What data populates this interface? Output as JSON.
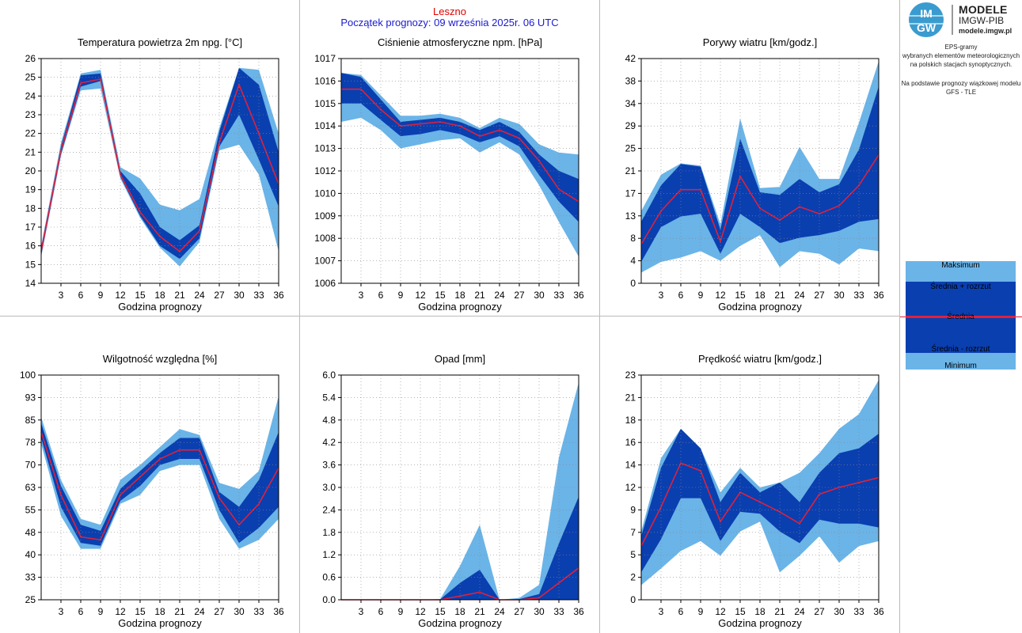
{
  "header": {
    "location": "Leszno",
    "forecast_start": "Początek prognozy: 09 września 2025r. 06 UTC"
  },
  "sidebar": {
    "logo_mark": "IM GW",
    "logo_name": "MODELE",
    "logo_sub": "IMGW-PIB",
    "logo_url": "modele.imgw.pl",
    "desc_lines": [
      "EPS-gramy",
      "wybranych elementów meteorologicznych",
      "na polskich stacjach  synoptycznych."
    ],
    "model_lines": [
      "Na podstawie prognozy wiązkowej modelu",
      "GFS - TLE"
    ],
    "legend": {
      "max": "Maksimum",
      "mean_plus": "Średnia + rozrzut",
      "mean": "Średnia",
      "mean_minus": "Średnia - rozrzut",
      "min": "Minimum"
    }
  },
  "colors": {
    "outer_band": "#6ab4e8",
    "inner_band": "#0a3fb0",
    "mean_line": "#e0203a",
    "grid": "#888888"
  },
  "chart_data": [
    {
      "type": "area",
      "title": "Temperatura powietrza 2m npg. [°C]",
      "xlabel": "Godzina prognozy",
      "x": [
        0,
        3,
        6,
        9,
        12,
        15,
        18,
        21,
        24,
        27,
        30,
        33,
        36
      ],
      "xticks": [
        3,
        6,
        9,
        12,
        15,
        18,
        21,
        24,
        27,
        30,
        33,
        36
      ],
      "ylim": [
        14,
        26
      ],
      "yticks": [
        "14",
        "15",
        "16",
        "17",
        "18",
        "19",
        "20",
        "21",
        "22",
        "23",
        "24",
        "25",
        "26"
      ],
      "series": [
        {
          "name": "Maksimum",
          "values": [
            16.0,
            21.5,
            25.2,
            25.4,
            20.2,
            19.6,
            18.2,
            17.9,
            18.5,
            22.3,
            25.5,
            25.4,
            22.0
          ]
        },
        {
          "name": "Średnia + rozrzut",
          "values": [
            15.9,
            21.3,
            25.1,
            25.2,
            20.0,
            18.8,
            17.0,
            16.3,
            17.1,
            22.1,
            25.5,
            24.6,
            21.0
          ]
        },
        {
          "name": "Średnia",
          "values": [
            15.7,
            21.1,
            24.7,
            24.9,
            19.8,
            17.8,
            16.5,
            15.7,
            16.8,
            21.5,
            24.6,
            22.0,
            19.3
          ]
        },
        {
          "name": "Średnia - rozrzut",
          "values": [
            15.5,
            20.9,
            24.5,
            24.8,
            19.7,
            17.6,
            16.0,
            15.3,
            16.4,
            21.3,
            23.0,
            20.6,
            18.1
          ]
        },
        {
          "name": "Minimum",
          "values": [
            15.4,
            20.8,
            24.3,
            24.4,
            19.6,
            17.5,
            15.9,
            14.9,
            16.2,
            21.1,
            21.4,
            19.8,
            15.7
          ]
        }
      ]
    },
    {
      "type": "area",
      "title": "Ciśnienie atmosferyczne npm. [hPa]",
      "xlabel": "Godzina prognozy",
      "x": [
        0,
        3,
        6,
        9,
        12,
        15,
        18,
        21,
        24,
        27,
        30,
        33,
        36
      ],
      "xticks": [
        3,
        6,
        9,
        12,
        15,
        18,
        21,
        24,
        27,
        30,
        33,
        36
      ],
      "ylim": [
        1006,
        1017
      ],
      "yticks": [
        "1006",
        "1007",
        "1008",
        "1009",
        "1010",
        "1012",
        "1013",
        "1014",
        "1015",
        "1016",
        "1017"
      ],
      "series": [
        {
          "name": "Maksimum",
          "values": [
            1016.3,
            1016.2,
            1015.2,
            1014.2,
            1014.2,
            1014.3,
            1014.1,
            1013.6,
            1014.1,
            1013.8,
            1012.8,
            1012.4,
            1012.3
          ]
        },
        {
          "name": "Średnia + rozrzut",
          "values": [
            1016.3,
            1016.1,
            1015.0,
            1013.9,
            1014.0,
            1014.1,
            1013.9,
            1013.5,
            1013.9,
            1013.4,
            1012.3,
            1011.5,
            1011.1
          ]
        },
        {
          "name": "Średnia",
          "values": [
            1015.5,
            1015.5,
            1014.5,
            1013.7,
            1013.8,
            1013.9,
            1013.7,
            1013.2,
            1013.5,
            1013.1,
            1012.0,
            1010.6,
            1010.0
          ]
        },
        {
          "name": "Średnia - rozrzut",
          "values": [
            1014.8,
            1014.8,
            1014.0,
            1013.2,
            1013.3,
            1013.5,
            1013.3,
            1012.9,
            1013.2,
            1012.7,
            1011.3,
            1010.0,
            1009.0
          ]
        },
        {
          "name": "Minimum",
          "values": [
            1013.9,
            1014.1,
            1013.5,
            1012.6,
            1012.8,
            1013.0,
            1013.1,
            1012.4,
            1012.9,
            1012.3,
            1010.8,
            1009.0,
            1007.3
          ]
        }
      ]
    },
    {
      "type": "area",
      "title": "Porywy wiatru [km/godz.]",
      "xlabel": "Godzina prognozy",
      "x": [
        0,
        3,
        6,
        9,
        12,
        15,
        18,
        21,
        24,
        27,
        30,
        33,
        36
      ],
      "xticks": [
        3,
        6,
        9,
        12,
        15,
        18,
        21,
        24,
        27,
        30,
        33,
        36
      ],
      "ylim": [
        0,
        42
      ],
      "yticks": [
        "0",
        "4",
        "8",
        "13",
        "17",
        "21",
        "25",
        "29",
        "34",
        "38",
        "42"
      ],
      "series": [
        {
          "name": "Maksimum",
          "values": [
            13.5,
            20.3,
            22.4,
            22.0,
            11.0,
            30.8,
            17.8,
            18.0,
            25.5,
            19.5,
            19.5,
            30.0,
            41.5
          ]
        },
        {
          "name": "Średnia + rozrzut",
          "values": [
            11.5,
            18.3,
            22.3,
            21.8,
            10.0,
            27.0,
            17.0,
            16.5,
            19.5,
            17.0,
            18.5,
            25.0,
            36.8
          ]
        },
        {
          "name": "Średnia",
          "values": [
            7.3,
            13.5,
            17.5,
            17.5,
            7.8,
            20.0,
            14.0,
            11.8,
            14.3,
            13.0,
            14.5,
            18.3,
            24.0
          ]
        },
        {
          "name": "Średnia - rozrzut",
          "values": [
            4.0,
            10.5,
            12.5,
            13.0,
            5.5,
            13.0,
            10.5,
            7.5,
            8.5,
            9.0,
            9.8,
            11.5,
            12.0
          ]
        },
        {
          "name": "Minimum",
          "values": [
            2.0,
            4.0,
            4.8,
            6.0,
            4.2,
            7.0,
            9.0,
            3.0,
            6.0,
            5.5,
            3.5,
            6.5,
            6.0
          ]
        }
      ]
    },
    {
      "type": "area",
      "title": "Wilgotność względna [%]",
      "xlabel": "Godzina prognozy",
      "x": [
        0,
        3,
        6,
        9,
        12,
        15,
        18,
        21,
        24,
        27,
        30,
        33,
        36
      ],
      "xticks": [
        3,
        6,
        9,
        12,
        15,
        18,
        21,
        24,
        27,
        30,
        33,
        36
      ],
      "ylim": [
        25,
        100
      ],
      "yticks": [
        "25",
        "33",
        "40",
        "48",
        "55",
        "63",
        "70",
        "78",
        "85",
        "93",
        "100"
      ],
      "series": [
        {
          "name": "Maksimum",
          "values": [
            86,
            65,
            52,
            50,
            65,
            70,
            76,
            82,
            80,
            64,
            62,
            68,
            93
          ]
        },
        {
          "name": "Średnia + rozrzut",
          "values": [
            84,
            63,
            50,
            48,
            62,
            68,
            74,
            79,
            79,
            61,
            56,
            65,
            81
          ]
        },
        {
          "name": "Średnia",
          "values": [
            81,
            60,
            46,
            45,
            60,
            66,
            72,
            75,
            75,
            59,
            50,
            57,
            69
          ]
        },
        {
          "name": "Średnia - rozrzut",
          "values": [
            79,
            56,
            44,
            43,
            58,
            63,
            70,
            72,
            72,
            55,
            44,
            49,
            56
          ]
        },
        {
          "name": "Minimum",
          "values": [
            77,
            53,
            42,
            42,
            57,
            60,
            68,
            70,
            70,
            52,
            42,
            45,
            52
          ]
        }
      ]
    },
    {
      "type": "area",
      "title": "Opad [mm]",
      "xlabel": "Godzina prognozy",
      "x": [
        0,
        3,
        6,
        9,
        12,
        15,
        18,
        21,
        24,
        27,
        30,
        33,
        36
      ],
      "xticks": [
        3,
        6,
        9,
        12,
        15,
        18,
        21,
        24,
        27,
        30,
        33,
        36
      ],
      "ylim": [
        0,
        6
      ],
      "yticks": [
        "0.0",
        "0.6",
        "1.2",
        "1.8",
        "2.4",
        "3.0",
        "3.6",
        "4.2",
        "4.8",
        "5.4",
        "6.0"
      ],
      "series": [
        {
          "name": "Maksimum",
          "values": [
            0,
            0,
            0,
            0,
            0,
            0.02,
            0.9,
            2.0,
            0,
            0.05,
            0.4,
            3.8,
            5.8
          ]
        },
        {
          "name": "Średnia + rozrzut",
          "values": [
            0,
            0,
            0,
            0,
            0,
            0.01,
            0.45,
            0.8,
            0,
            0.02,
            0.15,
            1.5,
            2.75
          ]
        },
        {
          "name": "Średnia",
          "values": [
            0,
            0,
            0,
            0,
            0,
            0,
            0.1,
            0.2,
            0,
            0,
            0.05,
            0.45,
            0.85
          ]
        },
        {
          "name": "Średnia - rozrzut",
          "values": [
            0,
            0,
            0,
            0,
            0,
            0,
            0,
            0,
            0,
            0,
            0,
            0,
            0
          ]
        },
        {
          "name": "Minimum",
          "values": [
            0,
            0,
            0,
            0,
            0,
            0,
            0,
            0,
            0,
            0,
            0,
            0,
            0
          ]
        }
      ]
    },
    {
      "type": "area",
      "title": "Prędkość wiatru [km/godz.]",
      "xlabel": "Godzina prognozy",
      "x": [
        0,
        3,
        6,
        9,
        12,
        15,
        18,
        21,
        24,
        27,
        30,
        33,
        36
      ],
      "xticks": [
        3,
        6,
        9,
        12,
        15,
        18,
        21,
        24,
        27,
        30,
        33,
        36
      ],
      "ylim": [
        0,
        23
      ],
      "yticks": [
        "0",
        "2",
        "5",
        "7",
        "9",
        "12",
        "14",
        "16",
        "18",
        "21",
        "23"
      ],
      "series": [
        {
          "name": "Maksimum",
          "values": [
            7.0,
            14.5,
            17.5,
            15.5,
            11.0,
            13.5,
            11.5,
            12.0,
            13.0,
            15.0,
            17.5,
            19.0,
            22.5
          ]
        },
        {
          "name": "Średnia + rozrzut",
          "values": [
            6.5,
            13.5,
            17.5,
            15.5,
            10.0,
            13.0,
            11.0,
            12.0,
            10.0,
            13.0,
            15.0,
            15.5,
            17.0
          ]
        },
        {
          "name": "Średnia",
          "values": [
            5.5,
            9.5,
            14.0,
            13.2,
            8.0,
            11.0,
            10.0,
            9.0,
            7.8,
            10.8,
            11.5,
            12.0,
            12.5
          ]
        },
        {
          "name": "Średnia - rozrzut",
          "values": [
            2.8,
            6.2,
            10.4,
            10.4,
            6.0,
            9.0,
            8.8,
            7.0,
            5.8,
            8.2,
            7.8,
            7.8,
            7.4
          ]
        },
        {
          "name": "Minimum",
          "values": [
            1.5,
            3.2,
            5.0,
            6.0,
            4.5,
            7.0,
            8.0,
            2.8,
            4.5,
            6.5,
            3.8,
            5.5,
            6.0
          ]
        }
      ]
    }
  ]
}
